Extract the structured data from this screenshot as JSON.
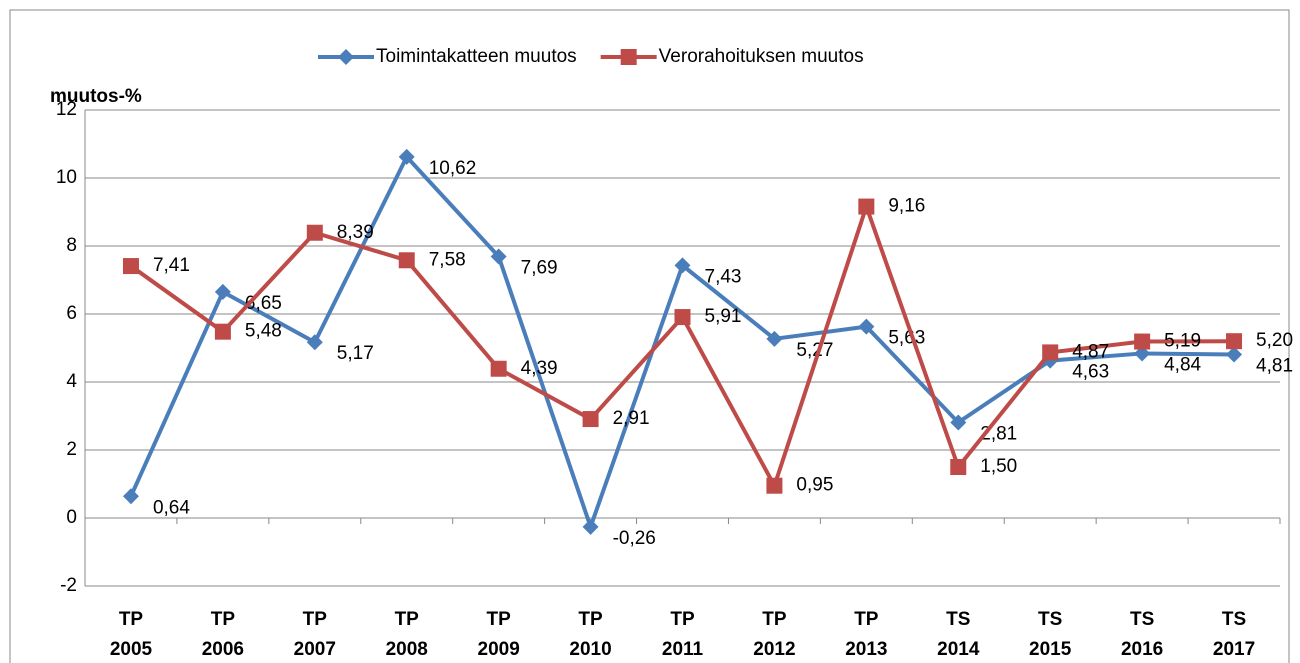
{
  "chart_data": {
    "type": "line",
    "y_label": "muutos-%",
    "categories": [
      "TP 2005",
      "TP 2006",
      "TP 2007",
      "TP 2008",
      "TP 2009",
      "TP 2010",
      "TP 2011",
      "TP 2012",
      "TP 2013",
      "TS 2014",
      "TS 2015",
      "TS 2016",
      "TS 2017"
    ],
    "series": [
      {
        "name": "Toimintakatteen muutos",
        "color": "#4a7ebb",
        "marker": "diamond",
        "values": [
          0.64,
          6.65,
          5.17,
          10.62,
          7.69,
          -0.26,
          7.43,
          5.27,
          5.63,
          2.81,
          4.63,
          4.84,
          4.81
        ],
        "value_labels": [
          "0,64",
          "6,65",
          "5,17",
          "10,62",
          "7,69",
          "-0,26",
          "7,43",
          "5,27",
          "5,63",
          "2,81",
          "4,63",
          "4,84",
          "4,81"
        ]
      },
      {
        "name": "Verorahoituksen muutos",
        "color": "#be4b48",
        "marker": "square",
        "values": [
          7.41,
          5.48,
          8.39,
          7.58,
          4.39,
          2.91,
          5.91,
          0.95,
          9.16,
          1.5,
          4.87,
          5.19,
          5.2
        ],
        "value_labels": [
          "7,41",
          "5,48",
          "8,39",
          "7,58",
          "4,39",
          "2,91",
          "5,91",
          "0,95",
          "9,16",
          "1,50",
          "4,87",
          "5,19",
          "5,20"
        ]
      }
    ],
    "ylim": [
      -2,
      12
    ],
    "yticks": [
      -2,
      0,
      2,
      4,
      6,
      8,
      10,
      12
    ],
    "grid": true,
    "legend": "top"
  }
}
